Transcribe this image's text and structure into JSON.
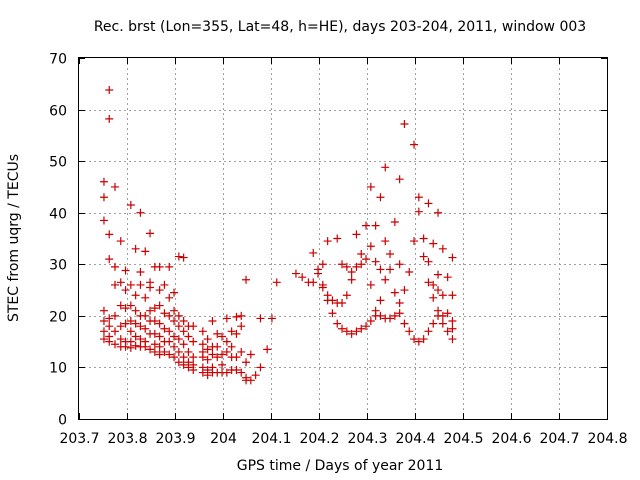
{
  "chart_data": {
    "type": "scatter",
    "title": "Rec. brst (Lon=355, Lat=48, h=HE), days 203-204, 2011, window 003",
    "xlabel": "GPS time / Days of year 2011",
    "ylabel": "STEC from uqrg / TECUs",
    "xlim": [
      203.7,
      204.8
    ],
    "ylim": [
      0,
      70
    ],
    "x_ticks": [
      203.7,
      203.8,
      203.9,
      204.0,
      204.1,
      204.2,
      204.3,
      204.4,
      204.5,
      204.6,
      204.7,
      204.8
    ],
    "x_tick_labels": [
      "203.7",
      "203.8",
      "203.9",
      "204",
      "204.1",
      "204.2",
      "204.3",
      "204.4",
      "204.5",
      "204.6",
      "204.7",
      "204.8"
    ],
    "y_ticks": [
      0,
      10,
      20,
      30,
      40,
      50,
      60,
      70
    ],
    "y_tick_labels": [
      "0",
      "10",
      "20",
      "30",
      "40",
      "50",
      "60",
      "70"
    ],
    "grid": true,
    "marker": "+",
    "color": "#cc0000",
    "points": [
      [
        203.752,
        46
      ],
      [
        203.752,
        43
      ],
      [
        203.752,
        38.5
      ],
      [
        203.752,
        21
      ],
      [
        203.752,
        19
      ],
      [
        203.752,
        17
      ],
      [
        203.752,
        15.5
      ],
      [
        203.763,
        63.8
      ],
      [
        203.763,
        58.2
      ],
      [
        203.763,
        35.8
      ],
      [
        203.763,
        31
      ],
      [
        203.763,
        19.5
      ],
      [
        203.763,
        18
      ],
      [
        203.763,
        16
      ],
      [
        203.763,
        15
      ],
      [
        203.775,
        45
      ],
      [
        203.775,
        29.5
      ],
      [
        203.775,
        26
      ],
      [
        203.775,
        20
      ],
      [
        203.775,
        17
      ],
      [
        203.775,
        14.5
      ],
      [
        203.787,
        34.5
      ],
      [
        203.787,
        26.5
      ],
      [
        203.787,
        22
      ],
      [
        203.787,
        18
      ],
      [
        203.787,
        15.5
      ],
      [
        203.787,
        14
      ],
      [
        203.797,
        28.8
      ],
      [
        203.797,
        25
      ],
      [
        203.797,
        21.5
      ],
      [
        203.797,
        18.5
      ],
      [
        203.797,
        15
      ],
      [
        203.797,
        14
      ],
      [
        203.808,
        41.5
      ],
      [
        203.808,
        26
      ],
      [
        203.808,
        22
      ],
      [
        203.808,
        19
      ],
      [
        203.808,
        17
      ],
      [
        203.808,
        15
      ],
      [
        203.808,
        13.8
      ],
      [
        203.818,
        33
      ],
      [
        203.818,
        24
      ],
      [
        203.818,
        21
      ],
      [
        203.818,
        18.5
      ],
      [
        203.818,
        16
      ],
      [
        203.818,
        14.2
      ],
      [
        203.828,
        40
      ],
      [
        203.828,
        28.5
      ],
      [
        203.828,
        26
      ],
      [
        203.828,
        20
      ],
      [
        203.828,
        18
      ],
      [
        203.828,
        15.5
      ],
      [
        203.828,
        14
      ],
      [
        203.838,
        32.5
      ],
      [
        203.838,
        23.5
      ],
      [
        203.838,
        20
      ],
      [
        203.838,
        17.5
      ],
      [
        203.838,
        15
      ],
      [
        203.838,
        14
      ],
      [
        203.848,
        36
      ],
      [
        203.848,
        26.5
      ],
      [
        203.848,
        25.5
      ],
      [
        203.848,
        21
      ],
      [
        203.848,
        19
      ],
      [
        203.848,
        16.5
      ],
      [
        203.848,
        13.5
      ],
      [
        203.858,
        29.5
      ],
      [
        203.858,
        21.5
      ],
      [
        203.858,
        19
      ],
      [
        203.858,
        16.5
      ],
      [
        203.858,
        14.5
      ],
      [
        203.858,
        13
      ],
      [
        203.868,
        29.5
      ],
      [
        203.868,
        25
      ],
      [
        203.868,
        22
      ],
      [
        203.868,
        18.5
      ],
      [
        203.868,
        16
      ],
      [
        203.868,
        14
      ],
      [
        203.868,
        12.5
      ],
      [
        203.878,
        26
      ],
      [
        203.878,
        20.5
      ],
      [
        203.878,
        17.5
      ],
      [
        203.878,
        15
      ],
      [
        203.878,
        13
      ],
      [
        203.888,
        29.5
      ],
      [
        203.888,
        23.5
      ],
      [
        203.888,
        20
      ],
      [
        203.888,
        17
      ],
      [
        203.888,
        15
      ],
      [
        203.888,
        12.5
      ],
      [
        203.898,
        24.5
      ],
      [
        203.898,
        21
      ],
      [
        203.898,
        19
      ],
      [
        203.898,
        16
      ],
      [
        203.898,
        14
      ],
      [
        203.898,
        12
      ],
      [
        203.908,
        31.5
      ],
      [
        203.908,
        20
      ],
      [
        203.908,
        18
      ],
      [
        203.908,
        15.5
      ],
      [
        203.908,
        13
      ],
      [
        203.908,
        11
      ],
      [
        203.918,
        31.3
      ],
      [
        203.918,
        19
      ],
      [
        203.918,
        17
      ],
      [
        203.918,
        14.5
      ],
      [
        203.918,
        12
      ],
      [
        203.918,
        10.5
      ],
      [
        203.928,
        18
      ],
      [
        203.928,
        16
      ],
      [
        203.928,
        13
      ],
      [
        203.928,
        11
      ],
      [
        203.928,
        10
      ],
      [
        203.938,
        18
      ],
      [
        203.938,
        15
      ],
      [
        203.938,
        12
      ],
      [
        203.938,
        10.5
      ],
      [
        203.938,
        9.5
      ],
      [
        203.958,
        17
      ],
      [
        203.958,
        14.5
      ],
      [
        203.958,
        13
      ],
      [
        203.958,
        12
      ],
      [
        203.958,
        10
      ],
      [
        203.958,
        9
      ],
      [
        203.968,
        15.5
      ],
      [
        203.968,
        13.5
      ],
      [
        203.968,
        11.5
      ],
      [
        203.968,
        9.5
      ],
      [
        203.968,
        8.5
      ],
      [
        203.978,
        19
      ],
      [
        203.978,
        14
      ],
      [
        203.978,
        12.5
      ],
      [
        203.978,
        10
      ],
      [
        203.978,
        9
      ],
      [
        203.988,
        16.5
      ],
      [
        203.988,
        14
      ],
      [
        203.988,
        12
      ],
      [
        203.988,
        9
      ],
      [
        203.998,
        16
      ],
      [
        203.998,
        12.5
      ],
      [
        203.998,
        10.5
      ],
      [
        203.998,
        9
      ],
      [
        204.008,
        19.5
      ],
      [
        204.008,
        15
      ],
      [
        204.008,
        13
      ],
      [
        204.008,
        9
      ],
      [
        204.018,
        17
      ],
      [
        204.018,
        14
      ],
      [
        204.018,
        12
      ],
      [
        204.018,
        9.5
      ],
      [
        204.028,
        19.8
      ],
      [
        204.028,
        16.5
      ],
      [
        204.028,
        12
      ],
      [
        204.028,
        9.5
      ],
      [
        204.038,
        20
      ],
      [
        204.038,
        18
      ],
      [
        204.038,
        13
      ],
      [
        204.038,
        9
      ],
      [
        204.048,
        27
      ],
      [
        204.048,
        11
      ],
      [
        204.048,
        8
      ],
      [
        204.048,
        7.5
      ],
      [
        204.058,
        12.5
      ],
      [
        204.058,
        7.5
      ],
      [
        204.068,
        8.5
      ],
      [
        204.078,
        19.5
      ],
      [
        204.078,
        10
      ],
      [
        204.092,
        13.5
      ],
      [
        204.102,
        19.5
      ],
      [
        204.112,
        26.5
      ],
      [
        204.152,
        28.2
      ],
      [
        204.165,
        27.5
      ],
      [
        204.178,
        26.5
      ],
      [
        204.188,
        32.2
      ],
      [
        204.188,
        26.5
      ],
      [
        204.198,
        29
      ],
      [
        204.198,
        28.2
      ],
      [
        204.208,
        30
      ],
      [
        204.208,
        26
      ],
      [
        204.208,
        25.5
      ],
      [
        204.218,
        34.5
      ],
      [
        204.218,
        24
      ],
      [
        204.218,
        23
      ],
      [
        204.228,
        23
      ],
      [
        204.228,
        20.5
      ],
      [
        204.238,
        35
      ],
      [
        204.238,
        22.5
      ],
      [
        204.238,
        18.5
      ],
      [
        204.248,
        30
      ],
      [
        204.248,
        22.5
      ],
      [
        204.248,
        17.5
      ],
      [
        204.258,
        29.5
      ],
      [
        204.258,
        24
      ],
      [
        204.258,
        17
      ],
      [
        204.268,
        28.5
      ],
      [
        204.268,
        27
      ],
      [
        204.268,
        16.5
      ],
      [
        204.278,
        35.8
      ],
      [
        204.278,
        29.5
      ],
      [
        204.278,
        17
      ],
      [
        204.288,
        32
      ],
      [
        204.288,
        30
      ],
      [
        204.288,
        17.5
      ],
      [
        204.298,
        37.5
      ],
      [
        204.298,
        31
      ],
      [
        204.298,
        18
      ],
      [
        204.308,
        45
      ],
      [
        204.308,
        33.5
      ],
      [
        204.308,
        26
      ],
      [
        204.308,
        19
      ],
      [
        204.318,
        37.5
      ],
      [
        204.318,
        30.5
      ],
      [
        204.318,
        21
      ],
      [
        204.318,
        20
      ],
      [
        204.328,
        43
      ],
      [
        204.328,
        29
      ],
      [
        204.328,
        23
      ],
      [
        204.328,
        20
      ],
      [
        204.338,
        48.8
      ],
      [
        204.338,
        34.5
      ],
      [
        204.338,
        27
      ],
      [
        204.338,
        19.5
      ],
      [
        204.348,
        32
      ],
      [
        204.348,
        29
      ],
      [
        204.348,
        19.5
      ],
      [
        204.358,
        38.2
      ],
      [
        204.358,
        24.5
      ],
      [
        204.358,
        20
      ],
      [
        204.368,
        46.5
      ],
      [
        204.368,
        30
      ],
      [
        204.368,
        22.5
      ],
      [
        204.368,
        20.5
      ],
      [
        204.378,
        57.2
      ],
      [
        204.378,
        25
      ],
      [
        204.378,
        18.5
      ],
      [
        204.388,
        28.5
      ],
      [
        204.388,
        17
      ],
      [
        204.398,
        53.2
      ],
      [
        204.398,
        34.5
      ],
      [
        204.398,
        15.5
      ],
      [
        204.408,
        43
      ],
      [
        204.408,
        40.2
      ],
      [
        204.408,
        15
      ],
      [
        204.418,
        35
      ],
      [
        204.418,
        31.5
      ],
      [
        204.418,
        15.5
      ],
      [
        204.428,
        41.8
      ],
      [
        204.428,
        30.5
      ],
      [
        204.428,
        26.5
      ],
      [
        204.428,
        17
      ],
      [
        204.438,
        34
      ],
      [
        204.438,
        26
      ],
      [
        204.438,
        23.5
      ],
      [
        204.438,
        18.5
      ],
      [
        204.448,
        40
      ],
      [
        204.448,
        28
      ],
      [
        204.448,
        25
      ],
      [
        204.448,
        21
      ],
      [
        204.448,
        20
      ],
      [
        204.458,
        33
      ],
      [
        204.458,
        24
      ],
      [
        204.458,
        20
      ],
      [
        204.458,
        18.5
      ],
      [
        204.468,
        27.5
      ],
      [
        204.468,
        20.5
      ],
      [
        204.468,
        17
      ],
      [
        204.478,
        31.3
      ],
      [
        204.478,
        24
      ],
      [
        204.478,
        19
      ],
      [
        204.478,
        17.5
      ],
      [
        204.478,
        15.5
      ]
    ]
  }
}
